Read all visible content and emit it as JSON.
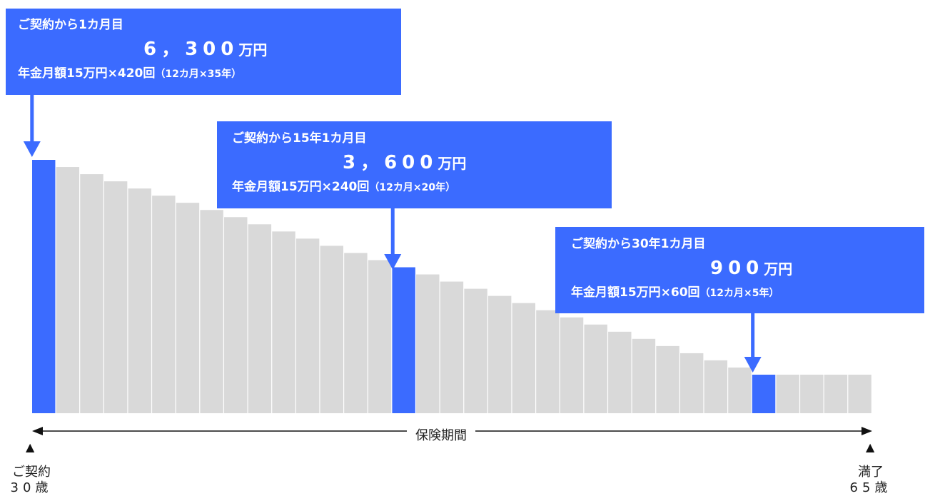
{
  "diagram": {
    "bar_count": 35,
    "highlight_bars": [
      1,
      16,
      31
    ],
    "colors": {
      "bar": "#d9d9d9",
      "highlight": "#3b6bff",
      "callout": "#3b6bff",
      "text": "#222222"
    }
  },
  "callouts": [
    {
      "line1": "ご契約から1カ月目",
      "amount": "6，300",
      "unit": "万円",
      "detail": "年金月額15万円×420回",
      "paren": "（12カ月×35年）"
    },
    {
      "line1": "ご契約から15年1カ月目",
      "amount": "3，600",
      "unit": "万円",
      "detail": "年金月額15万円×240回",
      "paren": "（12カ月×20年）"
    },
    {
      "line1": "ご契約から30年1カ月目",
      "amount": "900",
      "unit": "万円",
      "detail": "年金月額15万円×60回",
      "paren": "（12カ月×5年）"
    }
  ],
  "axis": {
    "label": "保険期間"
  },
  "start": {
    "marker": "▲",
    "label": "ご契約",
    "age": "30歳"
  },
  "end": {
    "marker": "▲",
    "label": "満了",
    "age": "65歳"
  }
}
